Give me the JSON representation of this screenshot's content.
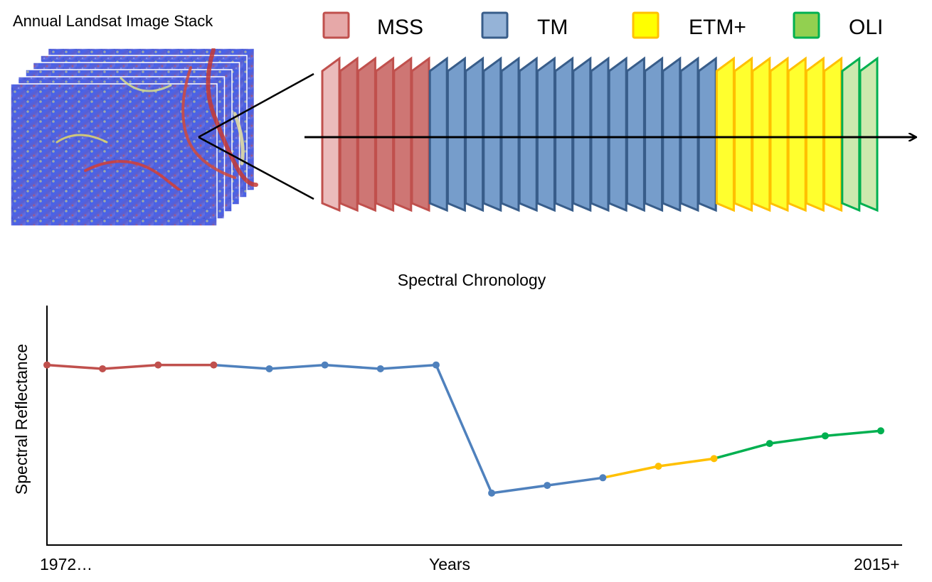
{
  "stack_title": "Annual Landsat Image Stack",
  "legend": [
    {
      "label": "MSS",
      "fill": "#e6a8a8",
      "stroke": "#c0504d"
    },
    {
      "label": "TM",
      "fill": "#95b3d7",
      "stroke": "#385d8a"
    },
    {
      "label": "ETM+",
      "fill": "#ffff00",
      "stroke": "#ffc000"
    },
    {
      "label": "OLI",
      "fill": "#92d050",
      "stroke": "#00b050"
    }
  ],
  "frame_sequence": [
    "MSS",
    "MSS",
    "MSS",
    "MSS",
    "MSS",
    "MSS",
    "TM",
    "TM",
    "TM",
    "TM",
    "TM",
    "TM",
    "TM",
    "TM",
    "TM",
    "TM",
    "TM",
    "TM",
    "TM",
    "TM",
    "TM",
    "TM",
    "ETM+",
    "ETM+",
    "ETM+",
    "ETM+",
    "ETM+",
    "ETM+",
    "ETM+",
    "OLI",
    "OLI"
  ],
  "colors": {
    "MSS": {
      "fill": "#c0504d",
      "stroke": "#c0504d"
    },
    "TM": {
      "fill": "#4f81bd",
      "stroke": "#385d8a"
    },
    "ETM+": {
      "fill": "#ffff00",
      "stroke": "#ffc000"
    },
    "OLI": {
      "fill": "#c3e5a0",
      "stroke": "#00b050"
    },
    "line_MSS": "#c0504d",
    "line_TM": "#4f81bd",
    "line_ETM+": "#ffc000",
    "line_OLI": "#00b050"
  },
  "chart_data": {
    "type": "line",
    "title": "Spectral Chronology",
    "xlabel": "Years",
    "ylabel": "Spectral Reflectance",
    "x_start_label": "1972…",
    "x_end_label": "2015+",
    "points": [
      {
        "i": 0,
        "y": 0.752,
        "sensor": "MSS"
      },
      {
        "i": 1,
        "y": 0.736,
        "sensor": "MSS"
      },
      {
        "i": 2,
        "y": 0.752,
        "sensor": "MSS"
      },
      {
        "i": 3,
        "y": 0.752,
        "sensor": "MSS"
      },
      {
        "i": 4,
        "y": 0.736,
        "sensor": "TM"
      },
      {
        "i": 5,
        "y": 0.752,
        "sensor": "TM"
      },
      {
        "i": 6,
        "y": 0.736,
        "sensor": "TM"
      },
      {
        "i": 7,
        "y": 0.752,
        "sensor": "TM"
      },
      {
        "i": 8,
        "y": 0.217,
        "sensor": "TM"
      },
      {
        "i": 9,
        "y": 0.249,
        "sensor": "TM"
      },
      {
        "i": 10,
        "y": 0.281,
        "sensor": "TM"
      },
      {
        "i": 11,
        "y": 0.329,
        "sensor": "ETM+"
      },
      {
        "i": 12,
        "y": 0.361,
        "sensor": "ETM+"
      },
      {
        "i": 13,
        "y": 0.424,
        "sensor": "OLI"
      },
      {
        "i": 14,
        "y": 0.456,
        "sensor": "OLI"
      },
      {
        "i": 15,
        "y": 0.477,
        "sensor": "OLI"
      }
    ],
    "ylim": [
      0,
      1
    ]
  }
}
